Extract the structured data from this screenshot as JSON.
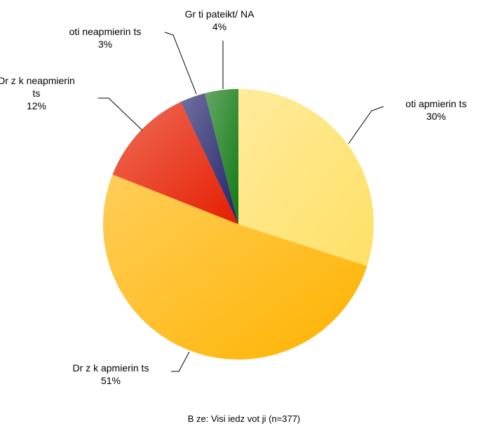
{
  "chart_data": {
    "type": "pie",
    "categories": [
      "oti apmierin ts",
      "Dr z k apmierin ts",
      "Dr z k neapmierin ts",
      "oti neapmierin ts",
      "Gr ti pateikt/ NA"
    ],
    "values": [
      30,
      51,
      12,
      3,
      4
    ],
    "value_labels": [
      "30%",
      "51%",
      "12%",
      "3%",
      "4%"
    ],
    "colors": [
      "#ffe066",
      "#ffb300",
      "#e61e00",
      "#23236b",
      "#127a12"
    ],
    "note": "B ze: Visi iedz vot ji (n=377)"
  }
}
